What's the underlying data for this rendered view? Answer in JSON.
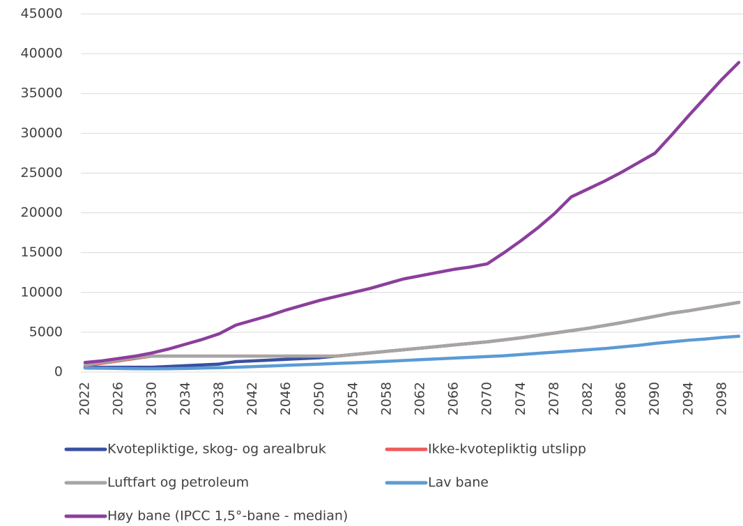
{
  "chart_data": {
    "type": "line",
    "x": [
      2022,
      2024,
      2026,
      2028,
      2030,
      2032,
      2034,
      2036,
      2038,
      2040,
      2042,
      2044,
      2046,
      2048,
      2050,
      2052,
      2054,
      2056,
      2058,
      2060,
      2062,
      2064,
      2066,
      2068,
      2070,
      2072,
      2074,
      2076,
      2078,
      2080,
      2082,
      2084,
      2086,
      2088,
      2090,
      2092,
      2094,
      2096,
      2098,
      2100
    ],
    "xlim": [
      2021.5,
      2100.5
    ],
    "xticks": [
      2022,
      2026,
      2030,
      2034,
      2038,
      2042,
      2046,
      2050,
      2054,
      2058,
      2062,
      2066,
      2070,
      2074,
      2078,
      2082,
      2086,
      2090,
      2094,
      2098
    ],
    "ylim": [
      0,
      45000
    ],
    "yticks": [
      0,
      5000,
      10000,
      15000,
      20000,
      25000,
      30000,
      35000,
      40000,
      45000
    ],
    "grid": true,
    "legend": "bottom",
    "series": [
      {
        "name": "Kvotepliktige, skog- og arealbruk",
        "color": "#3a4fa0",
        "values": [
          600,
          600,
          600,
          600,
          600,
          700,
          800,
          900,
          1000,
          1300,
          1400,
          1500,
          1600,
          1700,
          1800,
          2000,
          2200,
          2400,
          2600,
          2800,
          3000,
          3200,
          3400,
          3600,
          3800,
          4050,
          4300,
          4600,
          4900,
          5200,
          5500,
          5850,
          6200,
          6600,
          7000,
          7400,
          7700,
          8050,
          8400,
          8750
        ]
      },
      {
        "name": "Ikke-kvotepliktig utslipp",
        "color": "#f0595a",
        "values": [
          800,
          1100,
          1400,
          1700,
          2000,
          2000,
          2000,
          2000,
          2000,
          2000,
          2000,
          2000,
          2000,
          2000,
          2000,
          2000,
          2200,
          2400,
          2600,
          2800,
          3000,
          3200,
          3400,
          3600,
          3800,
          4050,
          4300,
          4600,
          4900,
          5200,
          5500,
          5850,
          6200,
          6600,
          7000,
          7400,
          7700,
          8050,
          8400,
          8750
        ]
      },
      {
        "name": "Luftfart og petroleum",
        "color": "#a5a5a5",
        "values": [
          900,
          1200,
          1500,
          1800,
          2000,
          2000,
          2000,
          2000,
          2000,
          2000,
          2000,
          2000,
          2000,
          2000,
          2000,
          2000,
          2200,
          2400,
          2600,
          2800,
          3000,
          3200,
          3400,
          3600,
          3800,
          4050,
          4300,
          4600,
          4900,
          5200,
          5500,
          5850,
          6200,
          6600,
          7000,
          7400,
          7700,
          8050,
          8400,
          8750
        ]
      },
      {
        "name": "Lav bane",
        "color": "#5b9bd5",
        "values": [
          500,
          480,
          450,
          420,
          400,
          420,
          450,
          500,
          550,
          600,
          680,
          760,
          840,
          920,
          1000,
          1080,
          1160,
          1250,
          1350,
          1450,
          1550,
          1650,
          1750,
          1850,
          1950,
          2050,
          2200,
          2350,
          2500,
          2650,
          2800,
          2950,
          3150,
          3350,
          3600,
          3800,
          4000,
          4150,
          4350,
          4500
        ]
      },
      {
        "name": "Høy bane (IPCC 1,5°-bane - median)",
        "color": "#8b3f9c",
        "values": [
          1200,
          1400,
          1700,
          2000,
          2400,
          2900,
          3500,
          4100,
          4800,
          5900,
          6500,
          7100,
          7800,
          8400,
          9000,
          9500,
          10000,
          10500,
          11100,
          11700,
          12100,
          12500,
          12900,
          13200,
          13600,
          15000,
          16500,
          18100,
          19900,
          22000,
          23000,
          24000,
          25100,
          26300,
          27500,
          29800,
          32200,
          34500,
          36800,
          38900
        ]
      }
    ]
  }
}
